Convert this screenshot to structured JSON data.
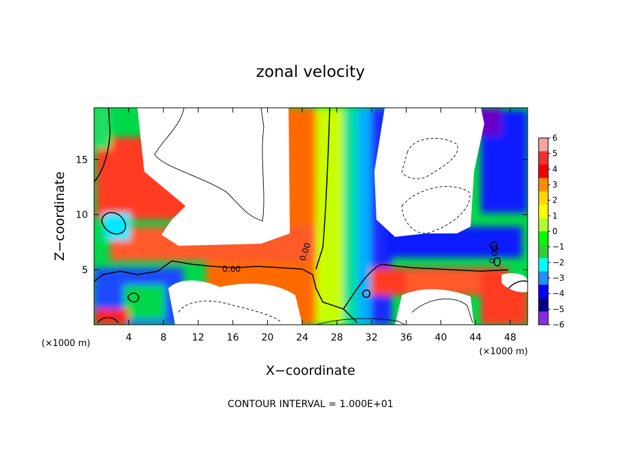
{
  "chart_data": {
    "type": "heatmap",
    "title": "zonal velocity",
    "xlabel": "X−coordinate",
    "ylabel": "Z−coordinate",
    "x_unit_left": "(×1000 m)",
    "x_unit_right": "(×1000 m)",
    "x_ticks": [
      4,
      8,
      12,
      16,
      20,
      24,
      28,
      32,
      36,
      40,
      44,
      48
    ],
    "y_ticks": [
      5,
      10,
      15
    ],
    "xlim": [
      0,
      50
    ],
    "ylim": [
      0,
      19.7
    ],
    "colorbar": {
      "ticks": [
        6,
        5,
        4,
        3,
        2,
        1,
        0,
        -1,
        -2,
        -3,
        -4,
        -5,
        -6
      ],
      "tick_labels": [
        "6",
        "5",
        "4",
        "3",
        "2",
        "1",
        "0",
        "−1",
        "−2",
        "−3",
        "−4",
        "−5",
        "−6"
      ],
      "range": [
        -6,
        6
      ],
      "colors": [
        "#f5a3a3",
        "#f03232",
        "#f50000",
        "#ff8c00",
        "#ffd700",
        "#ffff00",
        "#adff2f",
        "#00ff00",
        "#32cd32",
        "#00ffff",
        "#1e90ff",
        "#0000ff",
        "#00008b",
        "#8a2be2"
      ]
    },
    "contour_labels": [
      "0.00",
      "0.00",
      "0.00"
    ],
    "contour_interval_label": "CONTOUR INTERVAL = 1.000E+01"
  }
}
